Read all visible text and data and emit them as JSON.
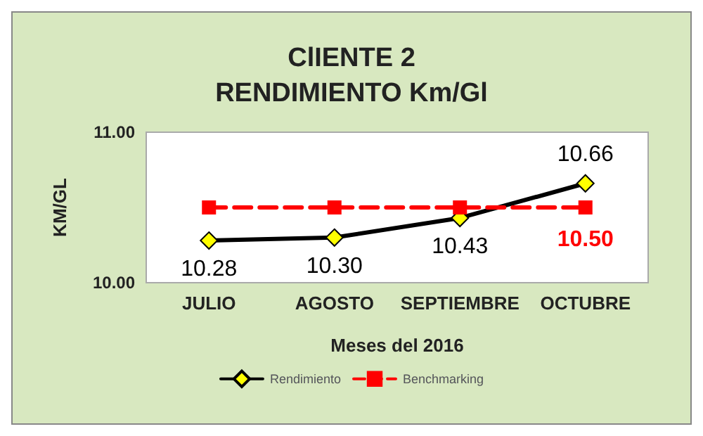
{
  "chart_data": {
    "type": "line",
    "title": "ClIENTE 2",
    "subtitle": "RENDIMIENTO Km/Gl",
    "xlabel": "Meses del 2016",
    "ylabel": "KM/GL",
    "categories": [
      "JULIO",
      "AGOSTO",
      "SEPTIEMBRE",
      "OCTUBRE"
    ],
    "series": [
      {
        "name": "Rendimiento",
        "color": "#000000",
        "marker": "diamond",
        "line_style": "solid",
        "values": [
          10.28,
          10.3,
          10.43,
          10.66
        ],
        "value_labels": [
          "10.28",
          "10.30",
          "10.43",
          "10.66"
        ]
      },
      {
        "name": "Benchmarking",
        "color": "#ff0000",
        "marker": "square",
        "line_style": "dashed",
        "values": [
          10.5,
          10.5,
          10.5,
          10.5
        ],
        "value_labels": [
          null,
          null,
          null,
          "10.50"
        ]
      }
    ],
    "ylim": [
      10,
      11
    ],
    "yticks": [
      {
        "value": 10,
        "label": "10.00"
      },
      {
        "value": 11,
        "label": "11.00"
      }
    ],
    "grid": false,
    "legend": "bottom"
  }
}
